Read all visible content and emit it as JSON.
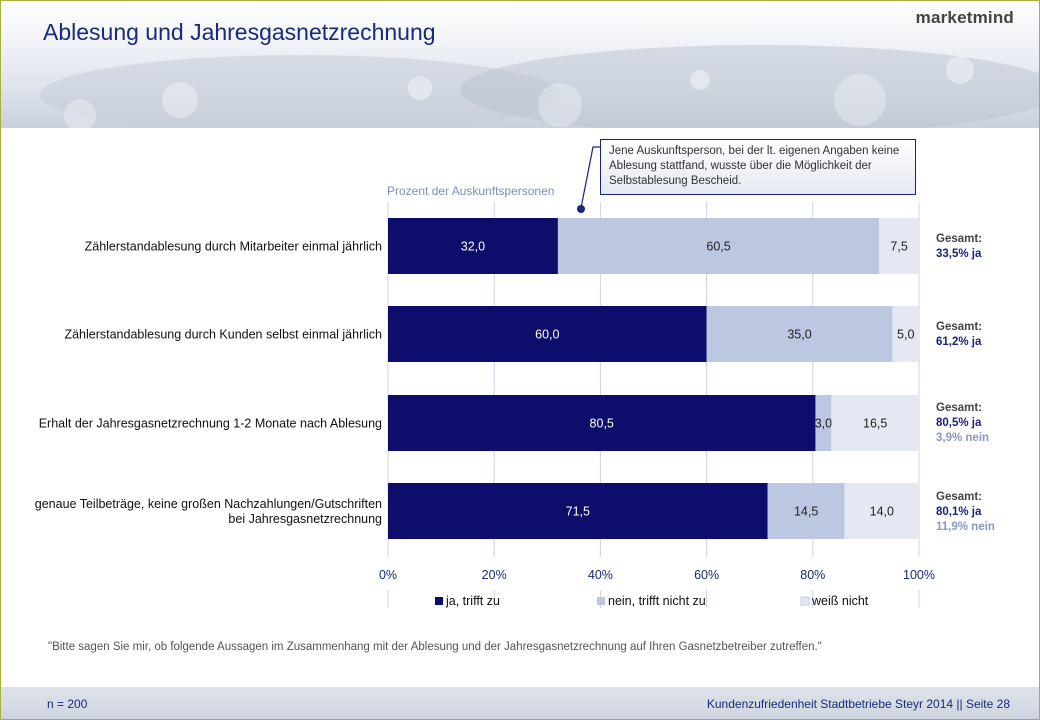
{
  "header": {
    "title": "Ablesung und Jahresgasnetzrechnung",
    "logo": "marketmind"
  },
  "callout": {
    "text": "Jene Auskunftsperson, bei der lt. eigenen Angaben keine Ablesung stattfand, wusste über die Möglichkeit der Selbstablesung Bescheid."
  },
  "chart_data": {
    "type": "bar",
    "orientation": "horizontal",
    "stacked": true,
    "title": "",
    "xlabel": "Prozent der Auskunftspersonen",
    "xlim": [
      0,
      100
    ],
    "x_ticks": [
      "0%",
      "20%",
      "40%",
      "60%",
      "80%",
      "100%"
    ],
    "grid": true,
    "legend_position": "bottom",
    "categories": [
      "Zählerstandablesung durch Mitarbeiter einmal jährlich",
      "Zählerstandablesung durch Kunden selbst einmal jährlich",
      "Erhalt der Jahresgasnetzrechnung 1-2 Monate nach Ablesung",
      "genaue Teilbeträge, keine großen Nachzahlungen/Gutschriften bei Jahresgasnetzrechnung"
    ],
    "series": [
      {
        "name": "ja, trifft zu",
        "color": "#0d0d6b",
        "values": [
          32.0,
          60.0,
          80.5,
          71.5
        ],
        "labels": [
          "32,0",
          "60,0",
          "80,5",
          "71,5"
        ]
      },
      {
        "name": "nein, trifft nicht zu",
        "color": "#bcc8e2",
        "values": [
          60.5,
          35.0,
          3.0,
          14.5
        ],
        "labels": [
          "60,5",
          "35,0",
          "3,0",
          "14,5"
        ]
      },
      {
        "name": "weiß nicht",
        "color": "#e4e8f2",
        "values": [
          7.5,
          5.0,
          16.5,
          14.0
        ],
        "labels": [
          "7,5",
          "5,0",
          "16,5",
          "14,0"
        ]
      }
    ]
  },
  "totals": [
    {
      "label": "Gesamt:",
      "ja": "33,5% ja",
      "nein": ""
    },
    {
      "label": "Gesamt:",
      "ja": "61,2% ja",
      "nein": ""
    },
    {
      "label": "Gesamt:",
      "ja": "80,5% ja",
      "nein": "3,9% nein"
    },
    {
      "label": "Gesamt:",
      "ja": "80,1% ja",
      "nein": "11,9% nein"
    }
  ],
  "question": "\"Bitte sagen Sie mir, ob folgende Aussagen im Zusammenhang mit der Ablesung und der Jahresgasnetzrechnung auf Ihren Gasnetzbetreiber zutreffen.\"",
  "footer": {
    "n": "n = 200",
    "source": "Kundenzufriedenheit Stadtbetriebe Steyr 2014 || Seite 28"
  }
}
